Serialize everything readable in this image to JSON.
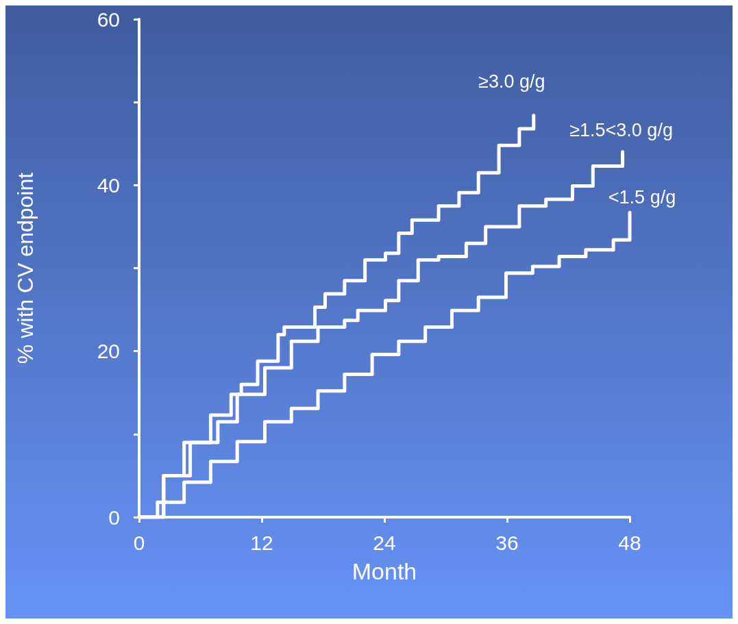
{
  "chart_data": {
    "type": "step",
    "xlabel": "Month",
    "ylabel": "% with CV endpoint",
    "xlim": [
      0,
      48
    ],
    "xticks": [
      0,
      12,
      24,
      36,
      48
    ],
    "ylim": [
      0,
      60
    ],
    "yticks": [
      0,
      {
        "value": 10,
        "label": null
      },
      20,
      {
        "value": 30,
        "label": null
      },
      40,
      {
        "value": 50,
        "label": null
      },
      60
    ],
    "grid": false,
    "legend": false,
    "marker": "none",
    "line_style": "solid",
    "series": [
      {
        "name": "≥3.0 g/g",
        "color": "#ffffff",
        "x": [
          0,
          2.4,
          4.4,
          7,
          9,
          10,
          11.6,
          13.6,
          14.2,
          16.2,
          17.2,
          18.2,
          20.1,
          22.1,
          24.1,
          25.4,
          26.7,
          29.3,
          31.3,
          33.2,
          35.2,
          37.2,
          38.6
        ],
        "values": [
          0,
          5,
          9,
          12.3,
          14.8,
          16,
          18.8,
          22,
          22.9,
          22.9,
          25.3,
          26.9,
          28.5,
          31,
          31.8,
          34.2,
          35.8,
          37.5,
          39.1,
          41.5,
          44.8,
          46.8,
          48.4
        ]
      },
      {
        "name": "≥1.5<3.0 g/g",
        "color": "#ffffff",
        "x": [
          0,
          2.4,
          5,
          7.7,
          9.6,
          12.3,
          14.9,
          17.5,
          20.1,
          21.4,
          24.1,
          25.4,
          27.3,
          29.3,
          32,
          33.9,
          37.2,
          39.8,
          42.4,
          44.4,
          47,
          47.3
        ],
        "values": [
          0,
          5,
          9,
          11.5,
          14.8,
          18,
          21.2,
          22.9,
          23.7,
          24.9,
          26.1,
          28.5,
          31,
          31.4,
          33,
          35,
          37.5,
          38.3,
          39.9,
          42.3,
          42.3,
          44
        ]
      },
      {
        "name": "<1.5 g/g",
        "color": "#ffffff",
        "x": [
          0,
          1.8,
          4.4,
          7,
          9.6,
          12.3,
          14.9,
          17.5,
          20.1,
          22.8,
          25.4,
          28,
          30.6,
          33.2,
          35.9,
          38.5,
          41.1,
          43.7,
          46.4,
          48
        ],
        "values": [
          0,
          1.8,
          4.2,
          6.7,
          9.1,
          11.5,
          13.1,
          15.2,
          17.2,
          19.6,
          21.2,
          22.9,
          24.9,
          26.5,
          29.4,
          30.2,
          31.4,
          32.2,
          33.4,
          36.7
        ]
      }
    ]
  }
}
